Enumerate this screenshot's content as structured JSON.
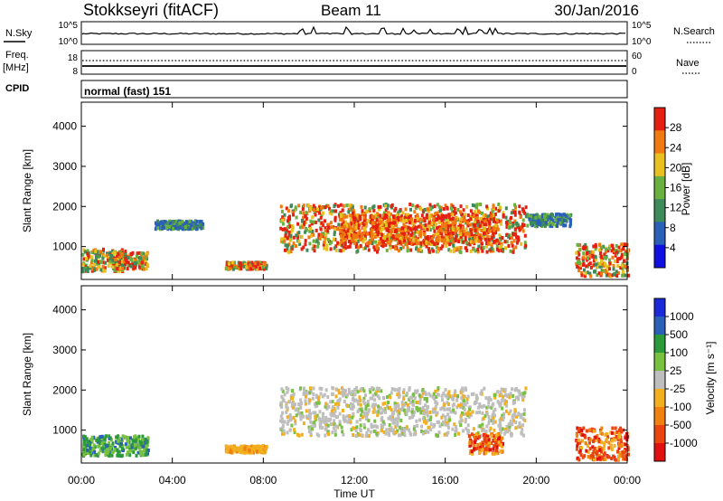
{
  "header": {
    "station": "Stokkseyri (fitACF)",
    "beam": "Beam 11",
    "date": "30/Jan/2016"
  },
  "noise_panel": {
    "left_label": "N.Sky",
    "left_ticks": [
      "10^5",
      "10^0"
    ],
    "right_ticks": [
      "10^5",
      "10^0"
    ],
    "right_label": "N.Search"
  },
  "freq_panel": {
    "left_label": "Freq.",
    "unit_label": "[MHz]",
    "left_ticks": [
      "18",
      "8"
    ],
    "right_ticks": [
      "60",
      "0"
    ],
    "right_label": "Nave"
  },
  "cpid_panel": {
    "label": "CPID",
    "mode_text": "normal (fast) 151"
  },
  "colors": {
    "power": [
      "#1010e0",
      "#2a60b8",
      "#3e8a5a",
      "#6ab040",
      "#e8c020",
      "#f07a10",
      "#e42010"
    ],
    "velocity": [
      "#e01010",
      "#ea4510",
      "#f08010",
      "#f2b020",
      "#bebebe",
      "#78c040",
      "#2a9a3a",
      "#2a60b8",
      "#1a2ad8"
    ]
  },
  "chart_data": [
    {
      "type": "heatmap",
      "name": "Power panel",
      "ylabel": "Slant Range [km]",
      "yticks": [
        1000,
        2000,
        3000,
        4000
      ],
      "ylim": [
        180,
        4600
      ],
      "colorbar_label": "Power [dB]",
      "colorbar_ticks": [
        4,
        8,
        12,
        16,
        20,
        24,
        28
      ],
      "colorbar_range": [
        0,
        32
      ],
      "echo_regions": [
        {
          "t": [
            0.0,
            1.9
          ],
          "range": [
            420,
            980
          ],
          "level": "medium-high"
        },
        {
          "t": [
            1.2,
            2.9
          ],
          "range": [
            480,
            900
          ],
          "level": "high"
        },
        {
          "t": [
            3.2,
            5.3
          ],
          "range": [
            1480,
            1680
          ],
          "level": "low"
        },
        {
          "t": [
            6.3,
            8.1
          ],
          "range": [
            480,
            650
          ],
          "level": "high"
        },
        {
          "t": [
            8.7,
            19.5
          ],
          "range": [
            900,
            2100
          ],
          "level": "high"
        },
        {
          "t": [
            11.3,
            18.3
          ],
          "range": [
            1100,
            1850
          ],
          "level": "very high"
        },
        {
          "t": [
            19.5,
            21.5
          ],
          "range": [
            1550,
            1850
          ],
          "level": "low"
        },
        {
          "t": [
            21.7,
            24.0
          ],
          "range": [
            300,
            1100
          ],
          "level": "high"
        }
      ]
    },
    {
      "type": "heatmap",
      "name": "Velocity panel",
      "xlabel": "Time UT",
      "xticks": [
        "00:00",
        "04:00",
        "08:00",
        "12:00",
        "16:00",
        "20:00",
        "00:00"
      ],
      "xlim_hours": [
        0,
        24
      ],
      "ylabel": "Slant Range [km]",
      "yticks": [
        1000,
        2000,
        3000,
        4000
      ],
      "ylim": [
        180,
        4600
      ],
      "colorbar_label": "Velocity [m s^-1]",
      "colorbar_ticks": [
        1000,
        500,
        100,
        25,
        -25,
        -100,
        -500,
        -1000
      ],
      "echo_regions": [
        {
          "t": [
            0.0,
            2.9
          ],
          "range": [
            400,
            900
          ],
          "velocity": "toward (+100 to +500)"
        },
        {
          "t": [
            6.3,
            8.1
          ],
          "range": [
            480,
            650
          ],
          "velocity": "away (-100)"
        },
        {
          "t": [
            8.7,
            19.5
          ],
          "range": [
            900,
            2100
          ],
          "velocity": "near zero (-25 to 25)"
        },
        {
          "t": [
            17.0,
            18.5
          ],
          "range": [
            450,
            950
          ],
          "velocity": "away (-500)"
        },
        {
          "t": [
            21.7,
            24.0
          ],
          "range": [
            300,
            1100
          ],
          "velocity": "away (-500)"
        }
      ]
    }
  ]
}
